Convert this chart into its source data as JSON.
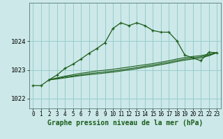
{
  "title": "Graphe pression niveau de la mer (hPa)",
  "bg_color": "#cce8e8",
  "grid_color": "#99cccc",
  "line_color": "#1a5c1a",
  "xlim": [
    -0.5,
    23.5
  ],
  "ylim": [
    1021.65,
    1025.35
  ],
  "yticks": [
    1022,
    1023,
    1024
  ],
  "xticks": [
    0,
    1,
    2,
    3,
    4,
    5,
    6,
    7,
    8,
    9,
    10,
    11,
    12,
    13,
    14,
    15,
    16,
    17,
    18,
    19,
    20,
    21,
    22,
    23
  ],
  "main_line_x": [
    0,
    1,
    2,
    3,
    4,
    5,
    6,
    7,
    8,
    9,
    10,
    11,
    12,
    13,
    14,
    15,
    16,
    17,
    18,
    19,
    20,
    21,
    22,
    23
  ],
  "main_line_y": [
    1022.45,
    1022.45,
    1022.65,
    1022.82,
    1023.05,
    1023.2,
    1023.38,
    1023.58,
    1023.75,
    1023.95,
    1024.45,
    1024.65,
    1024.55,
    1024.65,
    1024.55,
    1024.38,
    1024.32,
    1024.32,
    1024.02,
    1023.52,
    1023.42,
    1023.32,
    1023.62,
    1023.6
  ],
  "flat_line1_x": [
    2,
    3,
    4,
    5,
    6,
    7,
    8,
    9,
    10,
    11,
    12,
    13,
    14,
    15,
    16,
    17,
    18,
    19,
    20,
    21,
    22,
    23
  ],
  "flat_line1_y": [
    1022.65,
    1022.72,
    1022.78,
    1022.83,
    1022.88,
    1022.92,
    1022.96,
    1022.99,
    1023.02,
    1023.06,
    1023.1,
    1023.14,
    1023.18,
    1023.22,
    1023.27,
    1023.32,
    1023.38,
    1023.43,
    1023.47,
    1023.5,
    1023.55,
    1023.6
  ],
  "flat_line2_x": [
    2,
    3,
    4,
    5,
    6,
    7,
    8,
    9,
    10,
    11,
    12,
    13,
    14,
    15,
    16,
    17,
    18,
    19,
    20,
    21,
    22,
    23
  ],
  "flat_line2_y": [
    1022.65,
    1022.7,
    1022.75,
    1022.79,
    1022.83,
    1022.87,
    1022.9,
    1022.93,
    1022.96,
    1023.0,
    1023.04,
    1023.08,
    1023.13,
    1023.17,
    1023.22,
    1023.27,
    1023.33,
    1023.38,
    1023.42,
    1023.46,
    1023.52,
    1023.6
  ],
  "flat_line3_x": [
    2,
    3,
    4,
    5,
    6,
    7,
    8,
    9,
    10,
    11,
    12,
    13,
    14,
    15,
    16,
    17,
    18,
    19,
    20,
    21,
    22,
    23
  ],
  "flat_line3_y": [
    1022.65,
    1022.68,
    1022.72,
    1022.76,
    1022.8,
    1022.83,
    1022.86,
    1022.89,
    1022.92,
    1022.96,
    1023.0,
    1023.04,
    1023.09,
    1023.13,
    1023.18,
    1023.23,
    1023.29,
    1023.34,
    1023.38,
    1023.42,
    1023.49,
    1023.6
  ],
  "xlabel_color": "#1a5c1a",
  "xlabel_fontsize": 7,
  "ytick_fontsize": 6.5,
  "xtick_fontsize": 5.5
}
